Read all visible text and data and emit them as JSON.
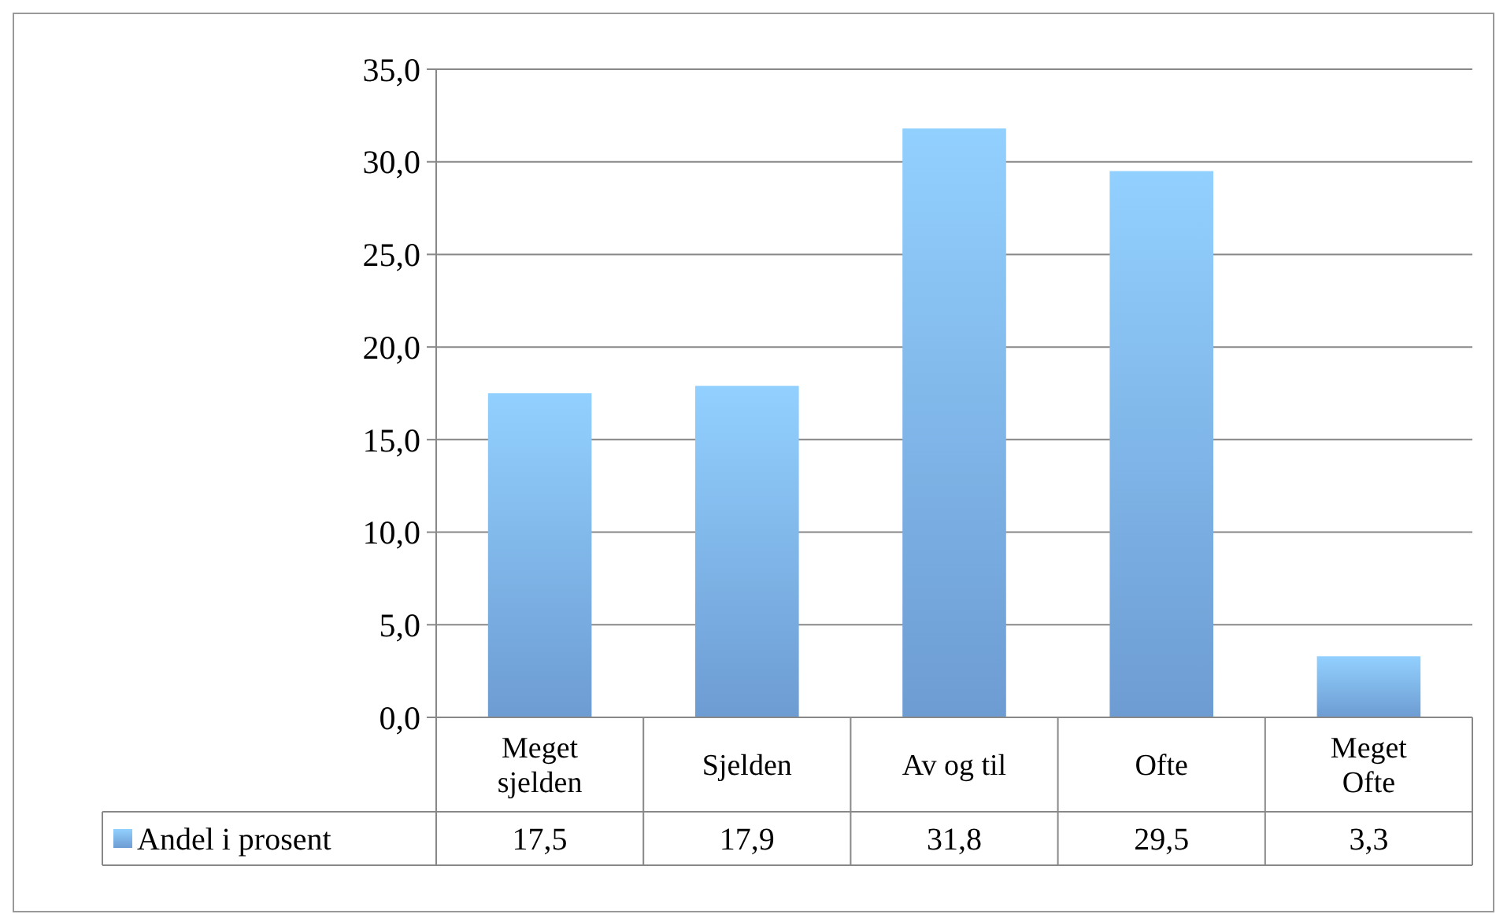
{
  "chart_data": {
    "type": "bar",
    "categories": [
      "Meget sjelden",
      "Sjelden",
      "Av og til",
      "Ofte",
      "Meget Ofte"
    ],
    "series": [
      {
        "name": "Andel i prosent",
        "color": "#7cb1ee",
        "values": [
          17.5,
          17.9,
          31.8,
          29.5,
          3.3
        ],
        "value_labels": [
          "17,5",
          "17,9",
          "31,8",
          "29,5",
          "3,3"
        ]
      }
    ],
    "ylim": [
      0,
      35
    ],
    "yticks": [
      {
        "value": 0,
        "label": "0,0"
      },
      {
        "value": 5,
        "label": "5,0"
      },
      {
        "value": 10,
        "label": "10,0"
      },
      {
        "value": 15,
        "label": "15,0"
      },
      {
        "value": 20,
        "label": "20,0"
      },
      {
        "value": 25,
        "label": "25,0"
      },
      {
        "value": 30,
        "label": "30,0"
      },
      {
        "value": 35,
        "label": "35,0"
      }
    ],
    "grid": "y",
    "legend": "bottom"
  }
}
